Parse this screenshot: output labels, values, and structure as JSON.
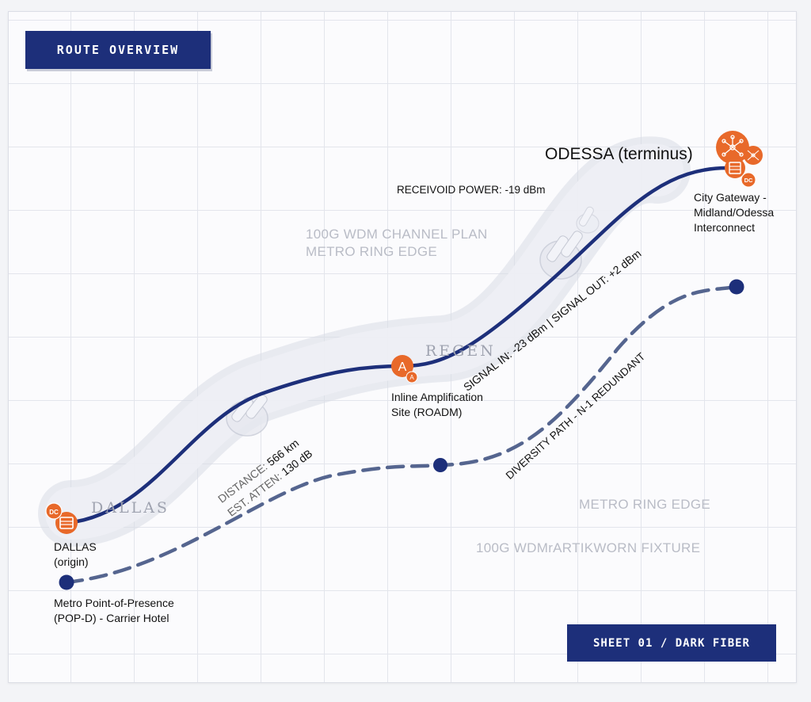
{
  "header": {
    "title": "ROUTE OVERVIEW"
  },
  "footer": {
    "sheet": "SHEET 01 / DARK FIBER"
  },
  "ghost_labels": {
    "plan_line1": "100G WDM CHANNEL PLAN",
    "plan_line2": "METRO RING EDGE",
    "ring_edge": "METRO RING EDGE",
    "fixture": "100G WDMrARTIKWORN FIXTURE",
    "dallas_faint": "DALLAS",
    "regen_faint": "REGEN"
  },
  "nodes": {
    "origin": {
      "line1": "DALLAS",
      "line2": "(origin)",
      "icon_text": "DC"
    },
    "pop": {
      "line1": "Metro Point-of-Presence",
      "line2": "(POP-D) - Carrier Hotel"
    },
    "amp": {
      "line1": "Inline Amplification",
      "line2": "Site (ROADM)",
      "icon_text": "A",
      "icon_sub": "A"
    },
    "terminus": {
      "title": "ODESSA (terminus)",
      "line1": "City Gateway -",
      "line2": "Midland/Odessa",
      "line3": "Interconnect",
      "icon_text": "DC"
    }
  },
  "annotations": {
    "received_power": "RECEIVOID POWER: -19 dBm",
    "distance_label": "DISTANCE:",
    "distance_value": "566 km",
    "atten_label": "EST. ATTEN:",
    "atten_value": "130 dB",
    "signal_in_label": "SIGNAL IN:",
    "signal_in_value": "-23 dBm",
    "signal_out_label": "| SIGNAL OUT:",
    "signal_out_value": "+2 dBm",
    "diversity": "DIVERSITY PATH - N-1 REDUNDANT"
  },
  "colors": {
    "primary_route": "#1d2f7a",
    "diversity_route": "#55658f",
    "node_accent": "#e8692a",
    "ghost_text": "#b9bcc6"
  },
  "icons": [
    "datacenter-icon",
    "network-hub-icon",
    "server-icon",
    "amplifier-icon"
  ]
}
